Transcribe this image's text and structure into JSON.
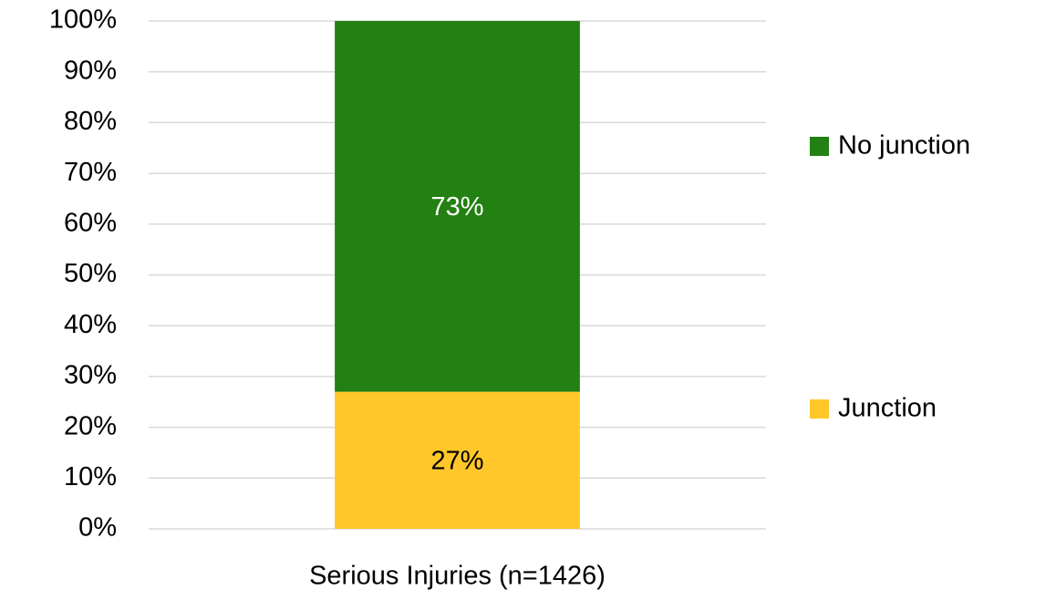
{
  "chart_data": {
    "type": "stacked_bar",
    "categories": [
      "Serious Injuries (n=1426)"
    ],
    "series": [
      {
        "name": "Junction",
        "color": "#ffc729",
        "values": [
          27
        ],
        "value_labels": [
          "27%"
        ]
      },
      {
        "name": "No junction",
        "color": "#238012",
        "values": [
          73
        ],
        "value_labels": [
          "73%"
        ]
      }
    ],
    "ylim": [
      0,
      100
    ],
    "yticks": [
      {
        "value": 0,
        "label": "0%"
      },
      {
        "value": 10,
        "label": "10%"
      },
      {
        "value": 20,
        "label": "20%"
      },
      {
        "value": 30,
        "label": "30%"
      },
      {
        "value": 40,
        "label": "40%"
      },
      {
        "value": 50,
        "label": "50%"
      },
      {
        "value": 60,
        "label": "60%"
      },
      {
        "value": 70,
        "label": "70%"
      },
      {
        "value": 80,
        "label": "80%"
      },
      {
        "value": 90,
        "label": "90%"
      },
      {
        "value": 100,
        "label": "100%"
      }
    ],
    "grid": true
  }
}
